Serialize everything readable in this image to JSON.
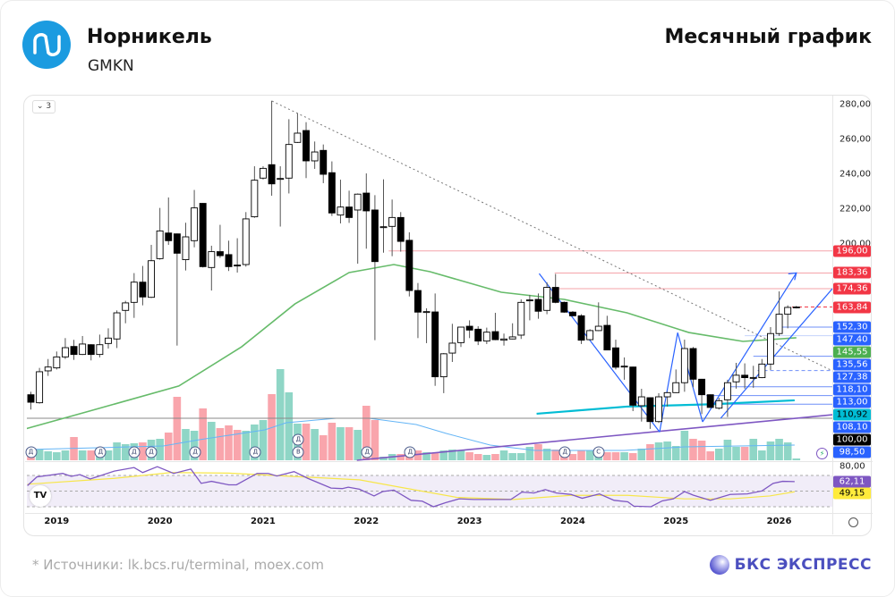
{
  "header": {
    "title": "Норникель",
    "ticker": "GMKN",
    "period": "Месячный график"
  },
  "toolbar": {
    "collapse_label": "⌄ 3",
    "tv_logo": "TV"
  },
  "axis": {
    "price_ticks": [
      {
        "v": 280,
        "t": "280,00"
      },
      {
        "v": 260,
        "t": "260,00"
      },
      {
        "v": 240,
        "t": "240,00"
      },
      {
        "v": 220,
        "t": "220,00"
      },
      {
        "v": 200,
        "t": "200,00"
      }
    ],
    "rsi_ticks": [
      {
        "v": 80,
        "t": "80,00"
      }
    ],
    "years": [
      {
        "t": "2019",
        "i": 4
      },
      {
        "t": "2020",
        "i": 16
      },
      {
        "t": "2021",
        "i": 28
      },
      {
        "t": "2022",
        "i": 40
      },
      {
        "t": "2023",
        "i": 52
      },
      {
        "t": "2024",
        "i": 64
      },
      {
        "t": "2025",
        "i": 76
      },
      {
        "t": "2026",
        "i": 88
      }
    ]
  },
  "colors": {
    "up_vol": "#8fd6c6",
    "down_vol": "#f9a5ac",
    "ma": "#66bb6a",
    "cyan": "#00bcd4",
    "trend": "#7e57c2",
    "blue": "#2962ff",
    "red": "#f23645",
    "rsi": "#7e57c2",
    "rsi_ma": "#f7e64a",
    "vol_ma": "#64b5f6"
  },
  "chart_data": {
    "type": "candlestick",
    "start": "2018-10",
    "interval": "1M",
    "ohlc": [
      [
        113.5,
        115.2,
        105.0,
        109.2
      ],
      [
        108.9,
        128.9,
        108.4,
        126.7
      ],
      [
        127.2,
        134.0,
        124.3,
        129.4
      ],
      [
        128.9,
        138.3,
        128.0,
        135.2
      ],
      [
        135.2,
        146.0,
        134.0,
        140.5
      ],
      [
        141.2,
        145.0,
        133.5,
        136.6
      ],
      [
        136.6,
        147.2,
        136.3,
        142.6
      ],
      [
        142.2,
        142.5,
        133.2,
        136.6
      ],
      [
        136.6,
        148.0,
        134.9,
        142.2
      ],
      [
        142.9,
        151.6,
        140.0,
        146.0
      ],
      [
        145.5,
        161.9,
        140.3,
        160.5
      ],
      [
        161.9,
        167.4,
        154.5,
        166.2
      ],
      [
        166.5,
        183.3,
        157.6,
        178.1
      ],
      [
        178.1,
        187.4,
        164.8,
        169.6
      ],
      [
        169.4,
        199.5,
        169.0,
        190.4
      ],
      [
        191.6,
        220.7,
        191.0,
        207.5
      ],
      [
        206.3,
        226.7,
        199.5,
        201.9
      ],
      [
        205.8,
        206.0,
        141.7,
        194.7
      ],
      [
        191.0,
        212.2,
        184.8,
        204.1
      ],
      [
        201.9,
        231.0,
        198.1,
        220.7
      ],
      [
        223.3,
        223.5,
        186.5,
        187.0
      ],
      [
        186.5,
        199.0,
        173.3,
        195.6
      ],
      [
        195.6,
        211.0,
        192.0,
        193.3
      ],
      [
        193.9,
        201.9,
        184.5,
        187.0
      ],
      [
        187.9,
        203.3,
        183.6,
        187.7
      ],
      [
        188.2,
        218.3,
        187.0,
        214.4
      ],
      [
        215.6,
        244.6,
        215.0,
        236.6
      ],
      [
        237.8,
        244.6,
        237.0,
        243.4
      ],
      [
        245.5,
        282.2,
        227.7,
        234.5
      ],
      [
        237.4,
        244.6,
        210.0,
        237.6
      ],
      [
        237.8,
        271.6,
        229.0,
        257.1
      ],
      [
        258.3,
        275.0,
        258.0,
        263.6
      ],
      [
        265.1,
        269.9,
        237.8,
        247.7
      ],
      [
        247.7,
        258.8,
        243.1,
        252.8
      ],
      [
        253.7,
        257.1,
        234.9,
        240.0
      ],
      [
        240.9,
        247.4,
        216.1,
        217.8
      ],
      [
        216.6,
        236.9,
        211.8,
        221.2
      ],
      [
        221.2,
        230.6,
        212.1,
        215.2
      ],
      [
        219.5,
        229.0,
        188.7,
        228.6
      ],
      [
        229.2,
        240.5,
        197.3,
        219.0
      ],
      [
        219.5,
        228.0,
        144.8,
        189.9
      ],
      [
        209.8,
        237.1,
        195.0,
        209.9
      ],
      [
        210.1,
        225.5,
        193.0,
        215.2
      ],
      [
        215.2,
        218.3,
        195.6,
        201.5
      ],
      [
        202.1,
        206.7,
        169.9,
        173.3
      ],
      [
        173.3,
        177.6,
        146.0,
        160.9
      ],
      [
        161.0,
        163.1,
        143.1,
        161.2
      ],
      [
        161.0,
        171.6,
        118.6,
        123.8
      ],
      [
        123.8,
        137.4,
        114.4,
        137.0
      ],
      [
        137.4,
        154.2,
        132.3,
        143.1
      ],
      [
        143.4,
        152.5,
        140.9,
        152.3
      ],
      [
        152.8,
        156.2,
        146.0,
        150.6
      ],
      [
        151.1,
        152.8,
        142.0,
        144.3
      ],
      [
        144.3,
        152.0,
        142.6,
        149.4
      ],
      [
        149.7,
        160.5,
        144.8,
        145.1
      ],
      [
        144.8,
        148.6,
        141.7,
        145.5
      ],
      [
        145.5,
        154.5,
        145.3,
        146.7
      ],
      [
        147.7,
        168.2,
        145.5,
        166.5
      ],
      [
        167.7,
        170.8,
        156.2,
        167.9
      ],
      [
        168.2,
        171.6,
        157.1,
        161.4
      ],
      [
        161.9,
        178.0,
        159.7,
        175.1
      ],
      [
        175.1,
        182.8,
        166.0,
        166.5
      ],
      [
        166.5,
        167.0,
        160.5,
        160.9
      ],
      [
        160.9,
        161.5,
        158.5,
        158.8
      ],
      [
        158.8,
        159.7,
        142.6,
        144.8
      ],
      [
        145.1,
        151.1,
        144.8,
        150.3
      ],
      [
        150.3,
        166.5,
        150.0,
        152.8
      ],
      [
        153.3,
        158.8,
        139.0,
        139.2
      ],
      [
        140.4,
        145.1,
        128.0,
        129.3
      ],
      [
        129.8,
        134.9,
        122.1,
        129.9
      ],
      [
        129.4,
        129.6,
        104.1,
        107.5
      ],
      [
        107.2,
        116.9,
        98.1,
        112.3
      ],
      [
        111.8,
        112.0,
        93.9,
        98.1
      ],
      [
        98.1,
        114.4,
        97.3,
        112.3
      ],
      [
        112.3,
        115.2,
        106.7,
        114.7
      ],
      [
        114.7,
        128.0,
        114.5,
        120.4
      ],
      [
        120.4,
        145.1,
        115.2,
        140.0
      ],
      [
        140.0,
        140.9,
        117.8,
        122.4
      ],
      [
        122.4,
        122.6,
        102.4,
        113.5
      ],
      [
        113.5,
        113.7,
        106.0,
        106.2
      ],
      [
        105.8,
        111.8,
        105.0,
        110.1
      ],
      [
        110.6,
        122.1,
        100.7,
        120.4
      ],
      [
        120.9,
        131.8,
        117.0,
        124.7
      ],
      [
        124.7,
        131.5,
        117.0,
        123.3
      ],
      [
        123.3,
        130.1,
        117.5,
        123.4
      ],
      [
        123.3,
        134.0,
        123.0,
        131.1
      ],
      [
        131.1,
        152.3,
        127.7,
        148.6
      ],
      [
        148.6,
        172.8,
        147.2,
        159.7
      ],
      [
        159.7,
        164.8,
        151.6,
        163.6
      ],
      [
        163.6,
        164.5,
        163.0,
        163.84
      ]
    ],
    "volume_relative": [
      11,
      12,
      10,
      9,
      11,
      26,
      11,
      11,
      14,
      11,
      20,
      18,
      19,
      20,
      23,
      24,
      31,
      71,
      35,
      33,
      58,
      43,
      36,
      39,
      34,
      33,
      40,
      45,
      74,
      102,
      76,
      41,
      41,
      35,
      28,
      42,
      37,
      37,
      34,
      61,
      45,
      4,
      7,
      7,
      10,
      11,
      9,
      8,
      11,
      12,
      11,
      9,
      7,
      6,
      7,
      11,
      8,
      8,
      15,
      18,
      13,
      12,
      12,
      7,
      11,
      11,
      13,
      9,
      9,
      9,
      8,
      13,
      18,
      20,
      21,
      16,
      33,
      24,
      22,
      10,
      13,
      23,
      15,
      15,
      24,
      11,
      21,
      24,
      20,
      2
    ],
    "volume_ma": [
      [
        0.7,
        12
      ],
      [
        16.4,
        16
      ],
      [
        20.6,
        23
      ],
      [
        28.2,
        34
      ],
      [
        30.7,
        42
      ],
      [
        36.5,
        47
      ],
      [
        40.3,
        47
      ],
      [
        45.8,
        40
      ],
      [
        49.3,
        30
      ],
      [
        54.4,
        17
      ],
      [
        59.6,
        11
      ],
      [
        70,
        11
      ],
      [
        77,
        15
      ],
      [
        89.8,
        17
      ]
    ],
    "price_ma": [
      [
        0.3,
        93.8
      ],
      [
        7.8,
        104.1
      ],
      [
        18.2,
        118.5
      ],
      [
        25.5,
        141
      ],
      [
        31.7,
        165.6
      ],
      [
        38,
        183.6
      ],
      [
        43.2,
        188.2
      ],
      [
        47.4,
        184.1
      ],
      [
        55.7,
        172.3
      ],
      [
        63,
        168.2
      ],
      [
        70.3,
        160.5
      ],
      [
        77.5,
        149.2
      ],
      [
        83.8,
        144.1
      ],
      [
        90,
        146.2
      ]
    ],
    "cyan_ma": [
      [
        59.8,
        102.6
      ],
      [
        70.3,
        106.7
      ],
      [
        80,
        108
      ],
      [
        89.8,
        110.3
      ]
    ],
    "rsi": [
      [
        0.6,
        57.0
      ],
      [
        1.7,
        68.1
      ],
      [
        4.7,
        72.6
      ],
      [
        5.7,
        68.9
      ],
      [
        6.7,
        71.1
      ],
      [
        7.9,
        65.5
      ],
      [
        10.7,
        75.6
      ],
      [
        13,
        80.1
      ],
      [
        14,
        73.7
      ],
      [
        15.7,
        81.2
      ],
      [
        17.6,
        72.6
      ],
      [
        19.6,
        78.2
      ],
      [
        20.8,
        59.9
      ],
      [
        22,
        62.5
      ],
      [
        24,
        58
      ],
      [
        24.9,
        58
      ],
      [
        27.3,
        72.6
      ],
      [
        28.6,
        72.6
      ],
      [
        29.6,
        69.3
      ],
      [
        31.6,
        74.9
      ],
      [
        33.2,
        66.3
      ],
      [
        35.9,
        53.9
      ],
      [
        37.2,
        53.2
      ],
      [
        37.9,
        55
      ],
      [
        39.2,
        52.4
      ],
      [
        40.9,
        43.8
      ],
      [
        41.9,
        49.4
      ],
      [
        43.2,
        51.3
      ],
      [
        45.2,
        38.2
      ],
      [
        46.5,
        37.1
      ],
      [
        47.8,
        30
      ],
      [
        49.2,
        35.2
      ],
      [
        50.8,
        40.1
      ],
      [
        52.5,
        39.3
      ],
      [
        55.1,
        39.3
      ],
      [
        56.8,
        39.3
      ],
      [
        58.1,
        48.7
      ],
      [
        59.5,
        47.6
      ],
      [
        60.8,
        52
      ],
      [
        62.1,
        47.6
      ],
      [
        63.8,
        45.7
      ],
      [
        65.1,
        40.8
      ],
      [
        67.1,
        46.4
      ],
      [
        68.8,
        38.2
      ],
      [
        70.4,
        36.3
      ],
      [
        71.1,
        30.7
      ],
      [
        73.1,
        30
      ],
      [
        74.4,
        37.5
      ],
      [
        75.7,
        40.1
      ],
      [
        77,
        49.4
      ],
      [
        78,
        44.9
      ],
      [
        80,
        38.2
      ],
      [
        82.3,
        45.7
      ],
      [
        84.3,
        46.4
      ],
      [
        86,
        50.2
      ],
      [
        87.3,
        59.9
      ],
      [
        88.4,
        62.5
      ],
      [
        89.8,
        62.11
      ]
    ],
    "rsi_ma": [
      [
        0.6,
        58.8
      ],
      [
        10.7,
        66.3
      ],
      [
        17.3,
        73.7
      ],
      [
        24,
        73
      ],
      [
        33.9,
        67.4
      ],
      [
        39.2,
        64.4
      ],
      [
        43.9,
        55
      ],
      [
        50.5,
        42
      ],
      [
        57.1,
        39.3
      ],
      [
        63.8,
        44.6
      ],
      [
        70.4,
        44.6
      ],
      [
        77,
        40.1
      ],
      [
        82.3,
        40.1
      ],
      [
        86.9,
        43.8
      ],
      [
        89.8,
        49.15
      ]
    ],
    "rsi_levels": [
      70,
      50,
      30
    ],
    "levels": [
      {
        "v": 196.0,
        "t": "196,00",
        "bg": "#f23645",
        "fg": "#ffffff",
        "line": "#f5a3aa",
        "from": 42.6,
        "dash": false
      },
      {
        "v": 183.36,
        "t": "183,36",
        "bg": "#f23645",
        "fg": "#ffffff",
        "line": "#f5a3aa",
        "from": 61.9,
        "dash": false
      },
      {
        "v": 174.36,
        "t": "174,36",
        "bg": "#f23645",
        "fg": "#ffffff",
        "line": "#f5a3aa",
        "from": 61.9,
        "dash": false
      },
      {
        "v": 163.84,
        "t": "163,84",
        "bg": "#f23645",
        "fg": "#ffffff",
        "line": "#f23645",
        "from": 89.5,
        "dash": true
      },
      {
        "v": 152.3,
        "t": "152,30",
        "bg": "#2962ff",
        "fg": "#ffffff",
        "line": "#6f8ff7",
        "from": 88,
        "dash": false
      },
      {
        "v": 147.4,
        "t": "147,40",
        "bg": "#2962ff",
        "fg": "#ffffff",
        "line": "#c4d2fb",
        "from": 84,
        "dash": false
      },
      {
        "v": 145.55,
        "t": "145,55",
        "bg": "#4caf50",
        "fg": "#ffffff",
        "line": null
      },
      {
        "v": 135.56,
        "t": "135,56",
        "bg": "#2962ff",
        "fg": "#ffffff",
        "line": "#6f8ff7",
        "from": 85,
        "dash": false
      },
      {
        "v": 127.38,
        "t": "127,38",
        "bg": "#2962ff",
        "fg": "#ffffff",
        "line": "#6f8ff7",
        "from": 85.5,
        "dash": true
      },
      {
        "v": 118.1,
        "t": "118,10",
        "bg": "#2962ff",
        "fg": "#ffffff",
        "line": "#6f8ff7",
        "from": 82,
        "dash": false
      },
      {
        "v": 113.0,
        "t": "113,00",
        "bg": "#2962ff",
        "fg": "#ffffff",
        "line": "#6f8ff7",
        "from": 79.5,
        "dash": false
      },
      {
        "v": 110.92,
        "t": "110,92",
        "bg": "#00bcd4",
        "fg": "#000000",
        "line": null
      },
      {
        "v": 108.1,
        "t": "108,10",
        "bg": "#2962ff",
        "fg": "#ffffff",
        "line": "#6f8ff7",
        "from": 79,
        "dash": false
      },
      {
        "v": 100.0,
        "t": "100,00",
        "bg": "#000000",
        "fg": "#ffffff",
        "line": "#888888",
        "from": 0,
        "dash": false
      },
      {
        "v": 98.5,
        "t": "98,50",
        "bg": "#2962ff",
        "fg": "#ffffff",
        "line": null
      }
    ],
    "rsi_labels": [
      {
        "v": 62.11,
        "t": "62,11",
        "bg": "#7e57c2",
        "fg": "#ffffff"
      },
      {
        "v": 49.15,
        "t": "49,15",
        "bg": "#ffeb3b",
        "fg": "#000000"
      }
    ],
    "trendlines": [
      {
        "name": "dotted-resistance",
        "a": [
          29.04,
          282
        ],
        "b": [
          94.2,
          127.2
        ],
        "color": "#777",
        "dash": "2,3",
        "w": 1
      },
      {
        "name": "support-trend",
        "a": [
          38.9,
          75.9
        ],
        "b": [
          94.2,
          102
        ],
        "color": "#7e57c2",
        "dash": "",
        "w": 1.6
      },
      {
        "name": "zigzag-1",
        "a": [
          60.1,
          183.0
        ],
        "b": [
          74.1,
          92.1
        ],
        "color": "#2962ff",
        "dash": "",
        "w": 1.2
      },
      {
        "name": "zigzag-2",
        "a": [
          74.1,
          92.1
        ],
        "b": [
          76.2,
          149.1
        ],
        "color": "#2962ff",
        "dash": "",
        "w": 1.2
      },
      {
        "name": "zigzag-3",
        "a": [
          76.2,
          149.1
        ],
        "b": [
          79.1,
          97.9
        ],
        "color": "#2962ff",
        "dash": "",
        "w": 1.2
      },
      {
        "name": "channel-upper",
        "a": [
          79.1,
          97.9
        ],
        "b": [
          90,
          183.4
        ],
        "color": "#2962ff",
        "dash": "",
        "w": 1.2
      },
      {
        "name": "channel-lower",
        "a": [
          81.2,
          100.0
        ],
        "b": [
          94.2,
          174.4
        ],
        "color": "#2962ff",
        "dash": "",
        "w": 1.2
      }
    ],
    "markers": [
      {
        "t": "Д",
        "i": 1,
        "row": 0
      },
      {
        "t": "Д",
        "i": 9.1,
        "row": 0
      },
      {
        "t": "Д",
        "i": 13,
        "row": 0
      },
      {
        "t": "Д",
        "i": 15,
        "row": 0
      },
      {
        "t": "Д",
        "i": 20.1,
        "row": 0
      },
      {
        "t": "Д",
        "i": 27.1,
        "row": 0
      },
      {
        "t": "В",
        "i": 32.1,
        "row": 0
      },
      {
        "t": "Д",
        "i": 32.1,
        "row": 1
      },
      {
        "t": "Д",
        "i": 40.1,
        "row": 0
      },
      {
        "t": "Д",
        "i": 45.1,
        "row": 0
      },
      {
        "t": "Д",
        "i": 63.1,
        "row": 0
      },
      {
        "t": "С",
        "i": 67,
        "row": 0
      }
    ],
    "event_icon": "⚡"
  },
  "footer": {
    "sources": "*  Источники: lk.bcs.ru/terminal, moex.com",
    "brand": "БКС ЭКСПРЕСС"
  }
}
